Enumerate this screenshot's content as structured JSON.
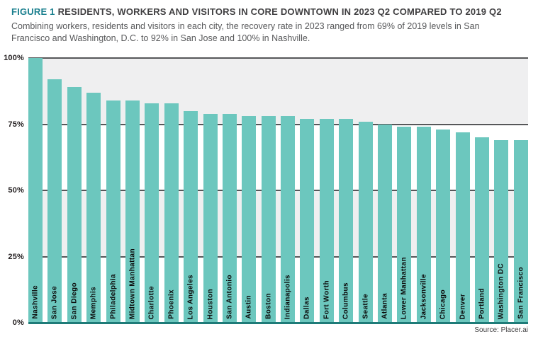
{
  "header": {
    "figure_label": "FIGURE 1",
    "title": "RESIDENTS, WORKERS AND VISITORS IN CORE DOWNTOWN IN 2023 Q2 COMPARED TO 2019 Q2",
    "subtitle": "Combining workers, residents and visitors in each city, the recovery rate in 2023 ranged from 69% of 2019 levels in San Francisco and Washington, D.C. to 92% in San Jose and 100% in Nashville."
  },
  "chart_data": {
    "type": "bar",
    "title": "Residents, workers and visitors in core downtown in 2023 Q2 compared to 2019 Q2",
    "categories": [
      "Nashville",
      "San Jose",
      "San Diego",
      "Memphis",
      "Philadelphia",
      "Midtown Manhattan",
      "Charlotte",
      "Phoenix",
      "Los Angeles",
      "Houston",
      "San Antonio",
      "Austin",
      "Boston",
      "Indianapolis",
      "Dallas",
      "Fort Worth",
      "Columbus",
      "Seattle",
      "Atlanta",
      "Lower Manhattan",
      "Jacksonville",
      "Chicago",
      "Denver",
      "Portland",
      "Washington DC",
      "San Francisco"
    ],
    "values": [
      100,
      92,
      89,
      87,
      84,
      84,
      83,
      83,
      80,
      79,
      79,
      78,
      78,
      78,
      77,
      77,
      77,
      76,
      75,
      74,
      74,
      73,
      72,
      70,
      69,
      69
    ],
    "value_unit": "% of 2019 Q2 levels",
    "xlabel": "",
    "ylabel": "",
    "ylim": [
      0,
      100
    ],
    "y_ticks": [
      "100%",
      "75%",
      "50%",
      "25%",
      "0%"
    ],
    "grid": "horizontal gridlines every 25%, alternating background bands",
    "legend": "none",
    "bar_color": "#6cc7be",
    "baseline_color": "#1e7b78",
    "band_color": "#efeff0",
    "gridline_color": "#565759",
    "accent_color": "#1a7f8e"
  },
  "footer": {
    "source": "Source: Placer.ai"
  }
}
